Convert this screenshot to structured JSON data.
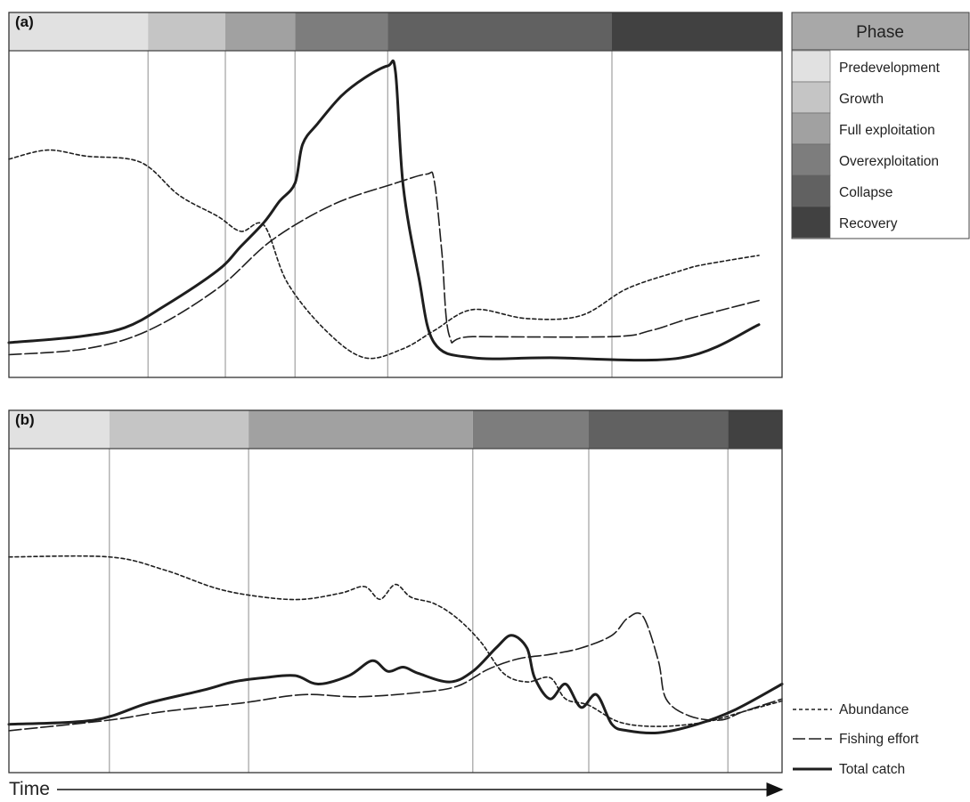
{
  "colors": {
    "predevelopment": "#e1e1e1",
    "growth": "#c5c5c5",
    "full_exploitation": "#a1a1a1",
    "overexploitation": "#7d7d7d",
    "collapse": "#616161",
    "recovery": "#414141",
    "line": "#1e1e1e",
    "grid": "#a0a0a0"
  },
  "phase_legend": {
    "title": "Phase",
    "items": [
      {
        "label": "Predevelopment",
        "color": "#e1e1e1"
      },
      {
        "label": "Growth",
        "color": "#c5c5c5"
      },
      {
        "label": "Full exploitation",
        "color": "#a1a1a1"
      },
      {
        "label": "Overexploitation",
        "color": "#7d7d7d"
      },
      {
        "label": "Collapse",
        "color": "#616161"
      },
      {
        "label": "Recovery",
        "color": "#414141"
      }
    ]
  },
  "line_legend": {
    "items": [
      {
        "label": "Abundance",
        "style": "short-dash"
      },
      {
        "label": "Fishing effort",
        "style": "long-dash"
      },
      {
        "label": "Total catch",
        "style": "solid"
      }
    ]
  },
  "time_axis": {
    "label": "Time"
  },
  "chart_data": [
    {
      "type": "line",
      "panel": "(a)",
      "phases": [
        {
          "phase": "Predevelopment",
          "start": 0.0,
          "end": 0.18
        },
        {
          "phase": "Growth",
          "start": 0.18,
          "end": 0.28
        },
        {
          "phase": "Full exploitation",
          "start": 0.28,
          "end": 0.37
        },
        {
          "phase": "Overexploitation",
          "start": 0.37,
          "end": 0.49
        },
        {
          "phase": "Collapse",
          "start": 0.49,
          "end": 0.78
        },
        {
          "phase": "Recovery",
          "start": 0.78,
          "end": 1.0
        }
      ],
      "series": [
        {
          "name": "Abundance",
          "style": "short-dash",
          "points": [
            [
              0.0,
              0.69
            ],
            [
              0.05,
              0.72
            ],
            [
              0.1,
              0.7
            ],
            [
              0.17,
              0.68
            ],
            [
              0.22,
              0.57
            ],
            [
              0.27,
              0.5
            ],
            [
              0.3,
              0.45
            ],
            [
              0.33,
              0.47
            ],
            [
              0.36,
              0.28
            ],
            [
              0.41,
              0.12
            ],
            [
              0.46,
              0.03
            ],
            [
              0.51,
              0.06
            ],
            [
              0.55,
              0.12
            ],
            [
              0.6,
              0.19
            ],
            [
              0.67,
              0.16
            ],
            [
              0.74,
              0.17
            ],
            [
              0.8,
              0.26
            ],
            [
              0.87,
              0.32
            ],
            [
              0.9,
              0.34
            ],
            [
              0.97,
              0.37
            ]
          ]
        },
        {
          "name": "Fishing effort",
          "style": "long-dash",
          "points": [
            [
              0.0,
              0.04
            ],
            [
              0.1,
              0.06
            ],
            [
              0.18,
              0.12
            ],
            [
              0.27,
              0.26
            ],
            [
              0.34,
              0.42
            ],
            [
              0.42,
              0.54
            ],
            [
              0.5,
              0.61
            ],
            [
              0.54,
              0.64
            ],
            [
              0.55,
              0.62
            ],
            [
              0.56,
              0.38
            ],
            [
              0.57,
              0.1
            ],
            [
              0.6,
              0.1
            ],
            [
              0.78,
              0.1
            ],
            [
              0.83,
              0.12
            ],
            [
              0.88,
              0.16
            ],
            [
              0.97,
              0.22
            ]
          ]
        },
        {
          "name": "Total catch",
          "style": "solid",
          "points": [
            [
              0.0,
              0.08
            ],
            [
              0.09,
              0.1
            ],
            [
              0.15,
              0.13
            ],
            [
              0.2,
              0.2
            ],
            [
              0.27,
              0.32
            ],
            [
              0.3,
              0.4
            ],
            [
              0.33,
              0.48
            ],
            [
              0.35,
              0.55
            ],
            [
              0.37,
              0.61
            ],
            [
              0.38,
              0.74
            ],
            [
              0.4,
              0.81
            ],
            [
              0.43,
              0.9
            ],
            [
              0.46,
              0.96
            ],
            [
              0.49,
              1.0
            ],
            [
              0.5,
              0.98
            ],
            [
              0.51,
              0.6
            ],
            [
              0.53,
              0.3
            ],
            [
              0.55,
              0.08
            ],
            [
              0.6,
              0.03
            ],
            [
              0.7,
              0.03
            ],
            [
              0.87,
              0.03
            ],
            [
              0.97,
              0.14
            ]
          ]
        }
      ]
    },
    {
      "type": "line",
      "panel": "(b)",
      "phases": [
        {
          "phase": "Predevelopment",
          "start": 0.0,
          "end": 0.13
        },
        {
          "phase": "Growth",
          "start": 0.13,
          "end": 0.31
        },
        {
          "phase": "Full exploitation",
          "start": 0.31,
          "end": 0.6
        },
        {
          "phase": "Overexploitation",
          "start": 0.6,
          "end": 0.75
        },
        {
          "phase": "Collapse",
          "start": 0.75,
          "end": 0.93
        },
        {
          "phase": "Recovery",
          "start": 0.93,
          "end": 1.0
        }
      ],
      "series": [
        {
          "name": "Abundance",
          "style": "short-dash",
          "points": [
            [
              0.0,
              0.85
            ],
            [
              0.13,
              0.85
            ],
            [
              0.2,
              0.79
            ],
            [
              0.27,
              0.7
            ],
            [
              0.33,
              0.66
            ],
            [
              0.38,
              0.65
            ],
            [
              0.43,
              0.68
            ],
            [
              0.46,
              0.71
            ],
            [
              0.48,
              0.65
            ],
            [
              0.5,
              0.72
            ],
            [
              0.52,
              0.66
            ],
            [
              0.55,
              0.63
            ],
            [
              0.58,
              0.56
            ],
            [
              0.61,
              0.45
            ],
            [
              0.64,
              0.3
            ],
            [
              0.67,
              0.26
            ],
            [
              0.7,
              0.28
            ],
            [
              0.72,
              0.18
            ],
            [
              0.75,
              0.15
            ],
            [
              0.79,
              0.07
            ],
            [
              0.84,
              0.05
            ],
            [
              0.9,
              0.07
            ],
            [
              0.95,
              0.12
            ],
            [
              1.0,
              0.17
            ]
          ]
        },
        {
          "name": "Fishing effort",
          "style": "long-dash",
          "points": [
            [
              0.0,
              0.03
            ],
            [
              0.13,
              0.08
            ],
            [
              0.2,
              0.12
            ],
            [
              0.3,
              0.16
            ],
            [
              0.38,
              0.2
            ],
            [
              0.45,
              0.19
            ],
            [
              0.53,
              0.21
            ],
            [
              0.58,
              0.24
            ],
            [
              0.62,
              0.32
            ],
            [
              0.66,
              0.37
            ],
            [
              0.7,
              0.39
            ],
            [
              0.74,
              0.42
            ],
            [
              0.78,
              0.48
            ],
            [
              0.8,
              0.56
            ],
            [
              0.82,
              0.57
            ],
            [
              0.84,
              0.36
            ],
            [
              0.85,
              0.18
            ],
            [
              0.88,
              0.1
            ],
            [
              0.92,
              0.08
            ],
            [
              0.95,
              0.12
            ],
            [
              1.0,
              0.18
            ]
          ]
        },
        {
          "name": "Total catch",
          "style": "solid",
          "points": [
            [
              0.0,
              0.06
            ],
            [
              0.11,
              0.08
            ],
            [
              0.18,
              0.16
            ],
            [
              0.25,
              0.22
            ],
            [
              0.29,
              0.26
            ],
            [
              0.33,
              0.28
            ],
            [
              0.37,
              0.29
            ],
            [
              0.4,
              0.25
            ],
            [
              0.44,
              0.29
            ],
            [
              0.47,
              0.36
            ],
            [
              0.49,
              0.31
            ],
            [
              0.51,
              0.33
            ],
            [
              0.53,
              0.3
            ],
            [
              0.57,
              0.26
            ],
            [
              0.6,
              0.31
            ],
            [
              0.63,
              0.42
            ],
            [
              0.65,
              0.48
            ],
            [
              0.67,
              0.42
            ],
            [
              0.68,
              0.28
            ],
            [
              0.7,
              0.18
            ],
            [
              0.72,
              0.25
            ],
            [
              0.74,
              0.14
            ],
            [
              0.76,
              0.2
            ],
            [
              0.78,
              0.06
            ],
            [
              0.8,
              0.03
            ],
            [
              0.84,
              0.02
            ],
            [
              0.89,
              0.06
            ],
            [
              0.94,
              0.13
            ],
            [
              1.0,
              0.25
            ]
          ]
        }
      ]
    }
  ]
}
